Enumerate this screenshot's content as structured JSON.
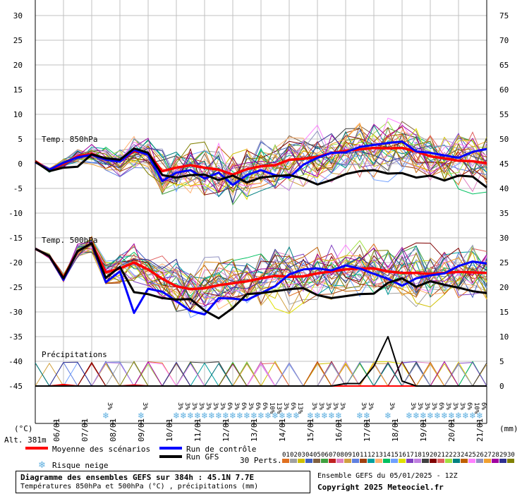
{
  "chart_data": {
    "type": "line",
    "title": "Diagramme des ensembles GEFS sur 384h : 45.1N 7.7E",
    "subtitle": "Températures 850hPa et 500hPa (°C) , précipitations (mm)",
    "run_info": "Ensemble GEFS du 05/01/2025 - 12Z",
    "copyright": "Copyright 2025 Meteociel.fr",
    "altitude": "Alt. 381m",
    "left_unit": "(°C)",
    "right_unit": "(mm)",
    "y_left_ticks": [
      "30",
      "25",
      "20",
      "15",
      "10",
      "5",
      "0",
      "-5",
      "-10",
      "-15",
      "-20",
      "-25",
      "-30",
      "-35",
      "-40",
      "-45"
    ],
    "y_right_ticks": [
      "75",
      "70",
      "65",
      "60",
      "55",
      "50",
      "45",
      "40",
      "35",
      "30",
      "25",
      "20",
      "15",
      "10",
      "5",
      "0"
    ],
    "ylim_left": [
      -45,
      30
    ],
    "x_day_labels": [
      "06/01",
      "07/01",
      "08/01",
      "09/01",
      "10/01",
      "11/01",
      "12/01",
      "13/01",
      "14/01",
      "15/01",
      "16/01",
      "17/01",
      "18/01",
      "19/01",
      "20/01",
      "21/01"
    ],
    "panel_labels": {
      "t850": "Temp. 850hPa",
      "t500": "Temp. 500hPa",
      "precip": "Précipitations"
    },
    "legend": {
      "mean": "Moyenne des scénarios",
      "control": "Run de contrôle",
      "gfs": "Run GFS",
      "snow": "Risque neige",
      "perts": "30 Perts."
    },
    "pert_numbers": [
      "01",
      "02",
      "03",
      "04",
      "05",
      "06",
      "07",
      "08",
      "09",
      "10",
      "11",
      "12",
      "13",
      "14",
      "15",
      "16",
      "17",
      "18",
      "19",
      "20",
      "21",
      "22",
      "23",
      "24",
      "25",
      "26",
      "27",
      "28",
      "29",
      "30"
    ],
    "pert_colors": [
      "#e07020",
      "#a0a0a0",
      "#d0c000",
      "#4060c0",
      "#806040",
      "#40a040",
      "#c02020",
      "#e080c0",
      "#d0a040",
      "#6080e0",
      "#a04010",
      "#00a0a0",
      "#ffb070",
      "#00c060",
      "#70a0ff",
      "#e0e000",
      "#8040c0",
      "#c080e0",
      "#404040",
      "#800000",
      "#e06060",
      "#a0e040",
      "#008080",
      "#c06000",
      "#ff80ff",
      "#9090c0",
      "#f0a030",
      "#a000a0",
      "#303090",
      "#808000"
    ],
    "snow_badge": "3%",
    "snow_badges": [
      {
        "x": 150,
        "label": "3%"
      },
      {
        "x": 200,
        "label": "3%"
      },
      {
        "x": 250,
        "label": "3%"
      },
      {
        "x": 260,
        "label": "3%"
      },
      {
        "x": 270,
        "label": "3%"
      },
      {
        "x": 280,
        "label": "3%"
      },
      {
        "x": 290,
        "label": "3%"
      },
      {
        "x": 300,
        "label": "3%"
      },
      {
        "x": 310,
        "label": "3%"
      },
      {
        "x": 320,
        "label": "6%"
      },
      {
        "x": 330,
        "label": "3%"
      },
      {
        "x": 340,
        "label": "6%"
      },
      {
        "x": 350,
        "label": "3%"
      },
      {
        "x": 360,
        "label": "6%"
      },
      {
        "x": 370,
        "label": "6%"
      },
      {
        "x": 380,
        "label": "10%"
      },
      {
        "x": 390,
        "label": "13%"
      },
      {
        "x": 400,
        "label": "3%"
      },
      {
        "x": 410,
        "label": "6%"
      },
      {
        "x": 420,
        "label": "13%"
      },
      {
        "x": 440,
        "label": "3%"
      },
      {
        "x": 450,
        "label": "3%"
      },
      {
        "x": 460,
        "label": "3%"
      },
      {
        "x": 470,
        "label": "3%"
      },
      {
        "x": 480,
        "label": "3%"
      },
      {
        "x": 510,
        "label": "3%"
      },
      {
        "x": 520,
        "label": "3%"
      },
      {
        "x": 550,
        "label": "3%"
      },
      {
        "x": 580,
        "label": "3%"
      },
      {
        "x": 590,
        "label": "3%"
      },
      {
        "x": 600,
        "label": "3%"
      },
      {
        "x": 610,
        "label": "3%"
      },
      {
        "x": 620,
        "label": "6%"
      },
      {
        "x": 630,
        "label": "3%"
      },
      {
        "x": 640,
        "label": "3%"
      },
      {
        "x": 650,
        "label": "3%"
      },
      {
        "x": 660,
        "label": "6%"
      },
      {
        "x": 670,
        "label": "10%"
      },
      {
        "x": 680,
        "label": "6%"
      }
    ],
    "series": [
      {
        "name": "Moyenne des scénarios",
        "role": "mean_850",
        "color": "#ff0000",
        "values": [
          0.5,
          -1.3,
          0,
          1.5,
          2,
          1,
          0.6,
          2.5,
          2.1,
          -1.5,
          -0.8,
          -0.3,
          -0.8,
          -1.2,
          -2.2,
          -1.1,
          -0.5,
          -0.3,
          0.8,
          1,
          1.4,
          2.2,
          2.6,
          2.9,
          3.2,
          3.1,
          3.2,
          2.5,
          1.5,
          1.1,
          0.6,
          0.5,
          0.1
        ]
      },
      {
        "name": "Run de contrôle",
        "role": "control_850",
        "color": "#0000ff",
        "values": [
          0.3,
          -1.2,
          0.2,
          1.3,
          1.8,
          0.8,
          0.4,
          2.8,
          1.8,
          -3.5,
          -1.8,
          -1.3,
          -3,
          -1.8,
          -4.3,
          -2.3,
          -1.3,
          -2.3,
          -2.8,
          -0.2,
          1.2,
          2.2,
          2.3,
          3.4,
          3.8,
          4.2,
          4.5,
          2.5,
          2.2,
          1.7,
          1.2,
          2.4,
          3
        ]
      },
      {
        "name": "Run GFS",
        "role": "gfs_850",
        "color": "#000000",
        "values": [
          0.4,
          -1.5,
          -0.8,
          -0.6,
          1.9,
          1.1,
          0.8,
          3.1,
          2.2,
          -2.3,
          -2.8,
          -2.3,
          -2.2,
          -3.3,
          -2.4,
          -3.8,
          -2.8,
          -2.5,
          -2.3,
          -3,
          -4.2,
          -3.3,
          -2.1,
          -1.5,
          -1.3,
          -2,
          -1.9,
          -2.8,
          -2.4,
          -3.4,
          -2.4,
          -2.6,
          -4.8
        ]
      },
      {
        "name": "Moyenne des scénarios",
        "role": "mean_500",
        "color": "#ff0000",
        "values": [
          -17.2,
          -18.7,
          -23,
          -17.7,
          -16.1,
          -22,
          -21.2,
          -20,
          -21.4,
          -23.3,
          -24.8,
          -25.4,
          -25.2,
          -24.6,
          -24.2,
          -23.8,
          -23.2,
          -22.7,
          -22.9,
          -22.8,
          -22.2,
          -21.8,
          -21.4,
          -21.2,
          -21.2,
          -21.8,
          -22.1,
          -22.1,
          -22.3,
          -22.1,
          -21.9,
          -22,
          -22.1
        ]
      },
      {
        "name": "Run de contrôle",
        "role": "control_500",
        "color": "#0000ff",
        "values": [
          -17.2,
          -18.7,
          -23.5,
          -17.7,
          -16.1,
          -24,
          -21.8,
          -30.2,
          -25.3,
          -25.9,
          -27.8,
          -29.8,
          -30.5,
          -27.2,
          -27.3,
          -27.6,
          -26.2,
          -24.8,
          -22.4,
          -21.4,
          -21.2,
          -21.6,
          -20.6,
          -21.2,
          -22.3,
          -23.3,
          -24.7,
          -23.2,
          -22.6,
          -22.2,
          -20.7,
          -19.8,
          -20.2
        ]
      },
      {
        "name": "Run GFS",
        "role": "gfs_500",
        "color": "#000000",
        "values": [
          -17.2,
          -18.7,
          -23.2,
          -17.7,
          -16.1,
          -23.1,
          -20.9,
          -26,
          -26.4,
          -27.2,
          -27.5,
          -27.4,
          -29.7,
          -31.3,
          -29.2,
          -26.4,
          -26.2,
          -25.8,
          -25.4,
          -25.2,
          -26.6,
          -27.2,
          -26.8,
          -26.4,
          -26.3,
          -24.1,
          -23.2,
          -24.9,
          -23.8,
          -24.5,
          -25.1,
          -25.8,
          -26.2
        ]
      },
      {
        "name": "Moyenne des scénarios",
        "role": "mean_precip",
        "color": "#ff0000",
        "values": [
          0,
          0,
          0.3,
          0,
          0,
          0,
          0,
          0.2,
          0,
          0,
          0,
          0,
          0,
          0,
          0,
          0,
          0,
          0,
          0,
          0,
          0,
          0,
          0,
          0,
          0,
          0,
          0,
          0,
          0,
          0,
          0,
          0,
          0
        ]
      },
      {
        "name": "Run GFS",
        "role": "gfs_precip",
        "color": "#000000",
        "values": [
          0,
          0,
          0,
          0,
          0,
          0,
          0,
          0,
          0,
          0,
          0,
          0,
          0,
          0,
          0,
          0,
          0,
          0,
          0,
          0,
          0,
          0,
          0.5,
          0.5,
          4,
          10,
          1,
          0,
          0,
          0,
          0,
          0,
          0
        ]
      }
    ]
  }
}
